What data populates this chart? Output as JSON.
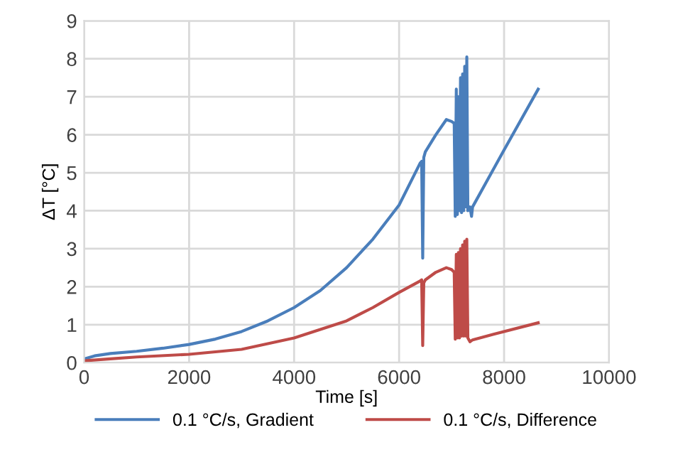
{
  "chart_data": {
    "type": "line",
    "xlabel": "Time [s]",
    "ylabel": "ΔT [°C]",
    "xlim": [
      0,
      10000
    ],
    "xticks": [
      0,
      2000,
      4000,
      6000,
      8000,
      10000
    ],
    "ylim": [
      0,
      9
    ],
    "yticks": [
      0,
      1,
      2,
      3,
      4,
      5,
      6,
      7,
      8,
      9
    ],
    "grid": true,
    "legend": "bottom",
    "marker": "none",
    "line_style": "solid",
    "series": [
      {
        "name": "0.1 °C/s, Gradient",
        "color": "#4a7ebb",
        "x": [
          0,
          200,
          500,
          1000,
          1500,
          2000,
          2500,
          3000,
          3500,
          4000,
          4500,
          5000,
          5500,
          6000,
          6400,
          6430,
          6450,
          6470,
          6500,
          6700,
          6900,
          7000,
          7050,
          7070,
          7090,
          7110,
          7130,
          7150,
          7170,
          7190,
          7210,
          7230,
          7250,
          7270,
          7290,
          7310,
          7350,
          7380,
          7400,
          8000,
          8650
        ],
        "values": [
          0.1,
          0.18,
          0.24,
          0.3,
          0.38,
          0.48,
          0.62,
          0.82,
          1.1,
          1.45,
          1.9,
          2.5,
          3.25,
          4.15,
          5.25,
          5.3,
          2.75,
          5.4,
          5.55,
          6.0,
          6.4,
          6.35,
          6.3,
          3.85,
          7.2,
          3.9,
          7.0,
          4.0,
          7.5,
          3.95,
          7.6,
          4.0,
          7.8,
          4.1,
          8.05,
          4.0,
          4.1,
          3.85,
          4.1,
          5.6,
          7.2
        ]
      },
      {
        "name": "0.1 °C/s, Difference",
        "color": "#be4b48",
        "x": [
          0,
          500,
          1000,
          2000,
          3000,
          4000,
          5000,
          5500,
          6000,
          6400,
          6430,
          6450,
          6470,
          6500,
          6700,
          6900,
          7000,
          7050,
          7070,
          7090,
          7110,
          7130,
          7150,
          7170,
          7190,
          7210,
          7230,
          7250,
          7270,
          7290,
          7310,
          7350,
          7400,
          7800,
          8650
        ],
        "values": [
          0.05,
          0.1,
          0.15,
          0.22,
          0.35,
          0.65,
          1.1,
          1.45,
          1.85,
          2.15,
          2.18,
          0.45,
          2.1,
          2.18,
          2.38,
          2.5,
          2.45,
          2.38,
          0.62,
          2.85,
          0.65,
          2.9,
          0.65,
          3.0,
          0.7,
          3.1,
          0.7,
          3.2,
          0.7,
          3.25,
          0.65,
          0.55,
          0.6,
          0.75,
          1.05
        ]
      }
    ]
  }
}
